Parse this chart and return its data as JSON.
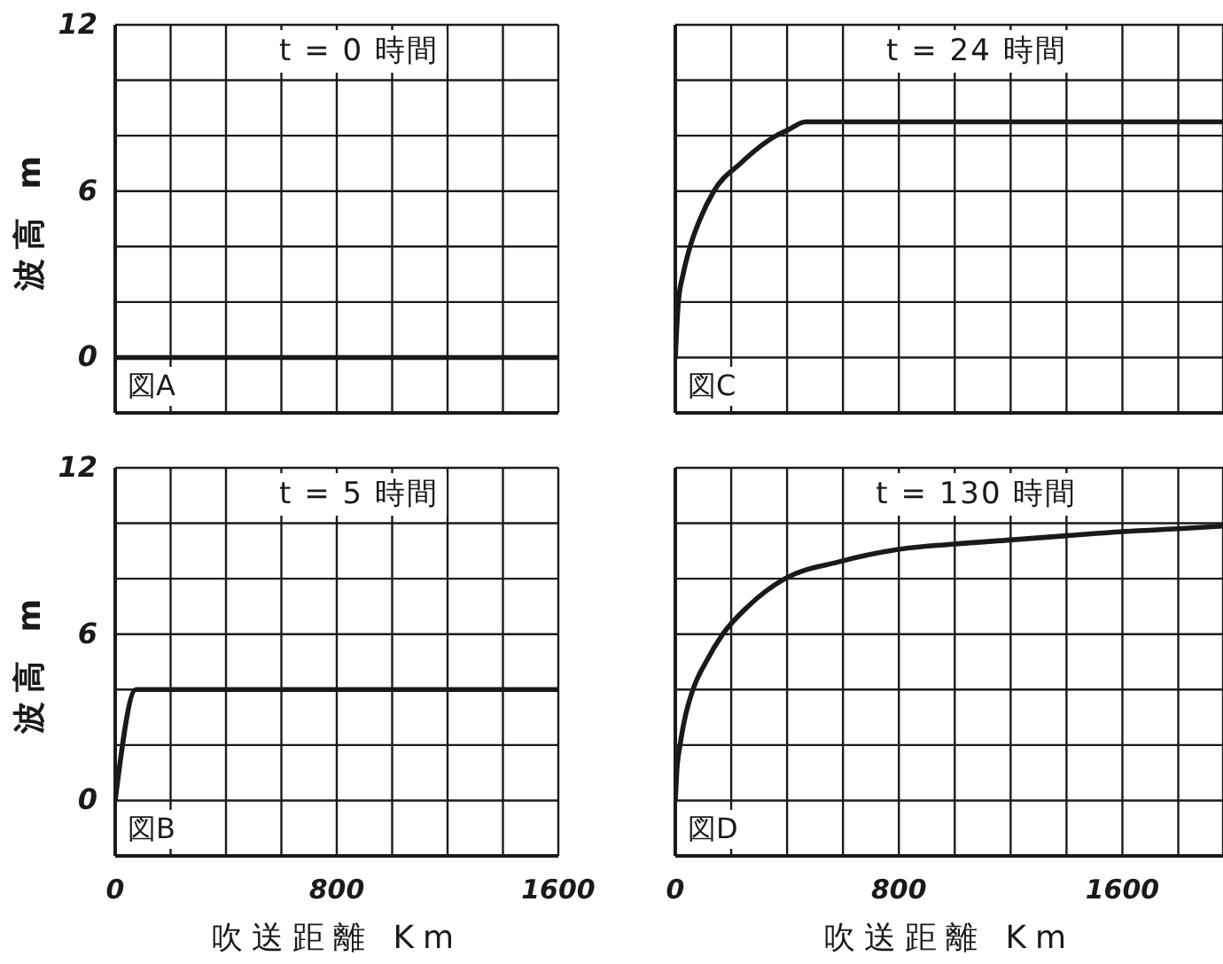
{
  "chart_data": [
    {
      "type": "line",
      "title": "t = 0 時間",
      "ylabel": "波高 m",
      "annotations": [
        "図A"
      ],
      "x": [
        0,
        1600
      ],
      "series": [
        {
          "color": "#1a1a1a",
          "values": [
            0,
            0
          ]
        }
      ],
      "xlim": [
        0,
        1600
      ],
      "ylim": [
        -2,
        12
      ],
      "xticks": [
        0,
        {
          "value": 200,
          "label": null
        },
        {
          "value": 400,
          "label": null
        },
        {
          "value": 600,
          "label": null
        },
        800,
        {
          "value": 1000,
          "label": null
        },
        {
          "value": 1200,
          "label": null
        },
        {
          "value": 1400,
          "label": null
        },
        1600
      ],
      "yticks": [
        0,
        {
          "value": 2,
          "label": null
        },
        {
          "value": 4,
          "label": null
        },
        6,
        {
          "value": 8,
          "label": null
        },
        {
          "value": 10,
          "label": null
        },
        12
      ],
      "grid": true,
      "tick_labels": "y"
    },
    {
      "type": "line",
      "title": "t = 24 時間",
      "annotations": [
        "図C"
      ],
      "x": [
        0,
        11,
        28,
        53,
        89,
        138,
        233,
        361,
        402,
        466,
        1960
      ],
      "series": [
        {
          "color": "#1a1a1a",
          "values": [
            0,
            2,
            3,
            4,
            5,
            6,
            7,
            8,
            8.2,
            8.5,
            8.5
          ]
        }
      ],
      "xlim": [
        0,
        1960
      ],
      "ylim": [
        -2,
        12
      ],
      "xticks": [
        0,
        {
          "value": 200,
          "label": null
        },
        {
          "value": 400,
          "label": null
        },
        {
          "value": 600,
          "label": null
        },
        800,
        {
          "value": 1000,
          "label": null
        },
        {
          "value": 1200,
          "label": null
        },
        {
          "value": 1400,
          "label": null
        },
        1600,
        {
          "value": 1800,
          "label": null
        }
      ],
      "yticks": [
        0,
        {
          "value": 2,
          "label": null
        },
        {
          "value": 4,
          "label": null
        },
        6,
        {
          "value": 8,
          "label": null
        },
        {
          "value": 10,
          "label": null
        },
        12
      ],
      "grid": true,
      "tick_labels": false
    },
    {
      "type": "line",
      "title": "t = 5 時間",
      "ylabel": "波高 m",
      "xlabel": "吹送距離 Km",
      "annotations": [
        "図B"
      ],
      "x": [
        0,
        75,
        1600
      ],
      "series": [
        {
          "color": "#1a1a1a",
          "values": [
            0,
            4,
            4
          ]
        }
      ],
      "xlim": [
        0,
        1600
      ],
      "ylim": [
        -2,
        12
      ],
      "xticks": [
        0,
        {
          "value": 200,
          "label": null
        },
        {
          "value": 400,
          "label": null
        },
        {
          "value": 600,
          "label": null
        },
        800,
        {
          "value": 1000,
          "label": null
        },
        {
          "value": 1200,
          "label": null
        },
        {
          "value": 1400,
          "label": null
        },
        1600
      ],
      "yticks": [
        0,
        {
          "value": 2,
          "label": null
        },
        {
          "value": 4,
          "label": null
        },
        6,
        {
          "value": 8,
          "label": null
        },
        {
          "value": 10,
          "label": null
        },
        12
      ],
      "grid": true
    },
    {
      "type": "line",
      "title": "t = 130 時間",
      "xlabel": "吹送距離 Km",
      "annotations": [
        "図D"
      ],
      "x": [
        0,
        5,
        17,
        35,
        63,
        110,
        170,
        260,
        392,
        582,
        794,
        1000,
        1200,
        1400,
        1600,
        1800,
        1960
      ],
      "series": [
        {
          "color": "#1a1a1a",
          "values": [
            0,
            1,
            2,
            3,
            4,
            5,
            6,
            7,
            8,
            8.6,
            9.05,
            9.25,
            9.4,
            9.55,
            9.7,
            9.8,
            9.9
          ]
        }
      ],
      "xlim": [
        0,
        1960
      ],
      "ylim": [
        -2,
        12
      ],
      "xticks": [
        0,
        {
          "value": 200,
          "label": null
        },
        {
          "value": 400,
          "label": null
        },
        {
          "value": 600,
          "label": null
        },
        800,
        {
          "value": 1000,
          "label": null
        },
        {
          "value": 1200,
          "label": null
        },
        {
          "value": 1400,
          "label": null
        },
        1600,
        {
          "value": 1800,
          "label": null
        }
      ],
      "yticks": [
        0,
        {
          "value": 2,
          "label": null
        },
        {
          "value": 4,
          "label": null
        },
        6,
        {
          "value": 8,
          "label": null
        },
        {
          "value": 10,
          "label": null
        },
        12
      ],
      "grid": true,
      "tick_labels": "x"
    }
  ]
}
